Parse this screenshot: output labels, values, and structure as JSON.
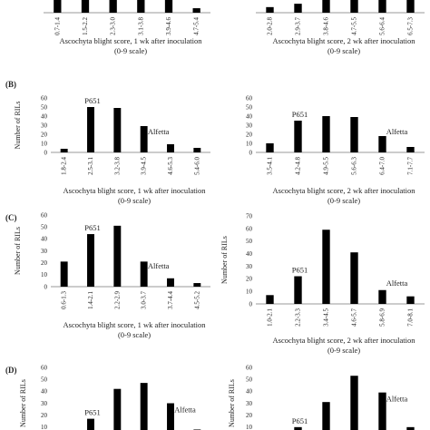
{
  "chart_data": [
    {
      "id": "A1",
      "panel_label": "",
      "type": "bar",
      "ylabel": "",
      "categories": [
        "0.7-1.4",
        "1.5-2.2",
        "2.3-3.0",
        "3.1-3.8",
        "3.9-4.6",
        "4.7-5.4"
      ],
      "values": [
        12,
        40,
        50,
        48,
        30,
        4
      ],
      "ylim": [
        0,
        60
      ],
      "show_yticks": false,
      "xlabel": "Ascochyta blight score, 1 wk after inoculation",
      "xlabel2": "(0-9 scale)",
      "annotations": []
    },
    {
      "id": "A2",
      "panel_label": "",
      "type": "bar",
      "ylabel": "",
      "categories": [
        "2.0-2.8",
        "2.9-3.7",
        "3.8-4.6",
        "4.7-5.5",
        "5.6-6.4",
        "6.5-7.3"
      ],
      "values": [
        5,
        8,
        40,
        45,
        35,
        30
      ],
      "ylim": [
        0,
        60
      ],
      "show_yticks": false,
      "xlabel": "Ascochyta blight score, 2 wk after inoculation",
      "xlabel2": "(0-9 scale)",
      "annotations": []
    },
    {
      "id": "B1",
      "panel_label": "(B)",
      "type": "bar",
      "ylabel": "Number of RILs",
      "categories": [
        "1.8-2.4",
        "2.5-3.1",
        "3.2-3.8",
        "3.9-4.5",
        "4.6-5.3",
        "5.4-6.0"
      ],
      "values": [
        4,
        50,
        49,
        29,
        9,
        5
      ],
      "ylim": [
        0,
        60
      ],
      "ytick_labels": [
        "0",
        "10",
        "20",
        "30",
        "40",
        "50",
        "60"
      ],
      "show_yticks": true,
      "xlabel": "Ascochyta blight score, 1 wk after inoculation",
      "xlabel2": "(0-9 scale)",
      "annotations": [
        {
          "text": "P651",
          "bar": 1
        },
        {
          "text": "Alfetta",
          "bar": 3
        }
      ]
    },
    {
      "id": "B2",
      "panel_label": "",
      "type": "bar",
      "ylabel": "",
      "categories": [
        "3.5-4.1",
        "4.2-4.8",
        "4.9-5.5",
        "5.6-6.3",
        "6.4-7.0",
        "7.1-7.7"
      ],
      "values": [
        10,
        35,
        40,
        39,
        18,
        6
      ],
      "ylim": [
        0,
        60
      ],
      "ytick_labels": [
        "0",
        "10",
        "20",
        "30",
        "40",
        "50",
        "60"
      ],
      "show_yticks": true,
      "xlabel": "Ascochyta blight score, 2 wk after inoculation",
      "xlabel2": "(0-9 scale)",
      "annotations": [
        {
          "text": "P651",
          "bar": 1
        },
        {
          "text": "Alfetta",
          "bar": 4
        }
      ]
    },
    {
      "id": "C1",
      "panel_label": "(C)",
      "type": "bar",
      "ylabel": "Number of RILs",
      "categories": [
        "0.6-1.3",
        "1.4-2.1",
        "2.2-2.9",
        "3.0-3.7",
        "3.7-4.4",
        "4.5-5.2"
      ],
      "values": [
        21,
        44,
        51,
        21,
        7,
        3
      ],
      "ylim": [
        0,
        60
      ],
      "ytick_labels": [
        "0",
        "10",
        "20",
        "30",
        "40",
        "50",
        "60"
      ],
      "show_yticks": true,
      "xlabel": "Ascochyta blight score, 1 wk after inoculation",
      "xlabel2": "(0-9 scale)",
      "annotations": [
        {
          "text": "P651",
          "bar": 1
        },
        {
          "text": "Alfetta",
          "bar": 3
        }
      ]
    },
    {
      "id": "C2",
      "panel_label": "",
      "type": "bar",
      "ylabel": "Number of RILs",
      "categories": [
        "1.0-2.1",
        "2.2-3.3",
        "3.4-4.5",
        "4.6-5.7",
        "5.8-6.9",
        "7.0-8.1"
      ],
      "values": [
        7,
        22,
        59,
        41,
        11,
        6
      ],
      "ylim": [
        0,
        70
      ],
      "ytick_labels": [
        "0",
        "10",
        "20",
        "30",
        "40",
        "50",
        "60",
        "70"
      ],
      "show_yticks": true,
      "xlabel": "Ascochyta blight score, 2 wk after inoculation",
      "xlabel2": "(0-9 scale)",
      "annotations": [
        {
          "text": "P651",
          "bar": 1
        },
        {
          "text": "Alfetta",
          "bar": 4
        }
      ]
    },
    {
      "id": "D1",
      "panel_label": "(D)",
      "type": "bar",
      "ylabel": "Number of RILs",
      "categories": [
        "",
        "",
        "",
        "",
        "",
        ""
      ],
      "values": [
        5,
        17,
        42,
        47,
        30,
        8
      ],
      "ylim": [
        0,
        60
      ],
      "ytick_labels": [
        "0",
        "10",
        "20",
        "30",
        "40",
        "50",
        "60"
      ],
      "show_yticks": true,
      "xlabel": "",
      "xlabel2": "",
      "annotations": [
        {
          "text": "P651",
          "bar": 1
        },
        {
          "text": "Alfetta",
          "bar": 4
        }
      ]
    },
    {
      "id": "D2",
      "panel_label": "",
      "type": "bar",
      "ylabel": "Number of RILs",
      "categories": [
        "",
        "",
        "",
        "",
        "",
        ""
      ],
      "values": [
        5,
        10,
        31,
        53,
        39,
        10
      ],
      "ylim": [
        0,
        60
      ],
      "ytick_labels": [
        "0",
        "10",
        "20",
        "30",
        "40",
        "50",
        "60"
      ],
      "show_yticks": true,
      "xlabel": "",
      "xlabel2": "",
      "annotations": [
        {
          "text": "P651",
          "bar": 1
        },
        {
          "text": "Alfetta",
          "bar": 4
        }
      ]
    }
  ]
}
